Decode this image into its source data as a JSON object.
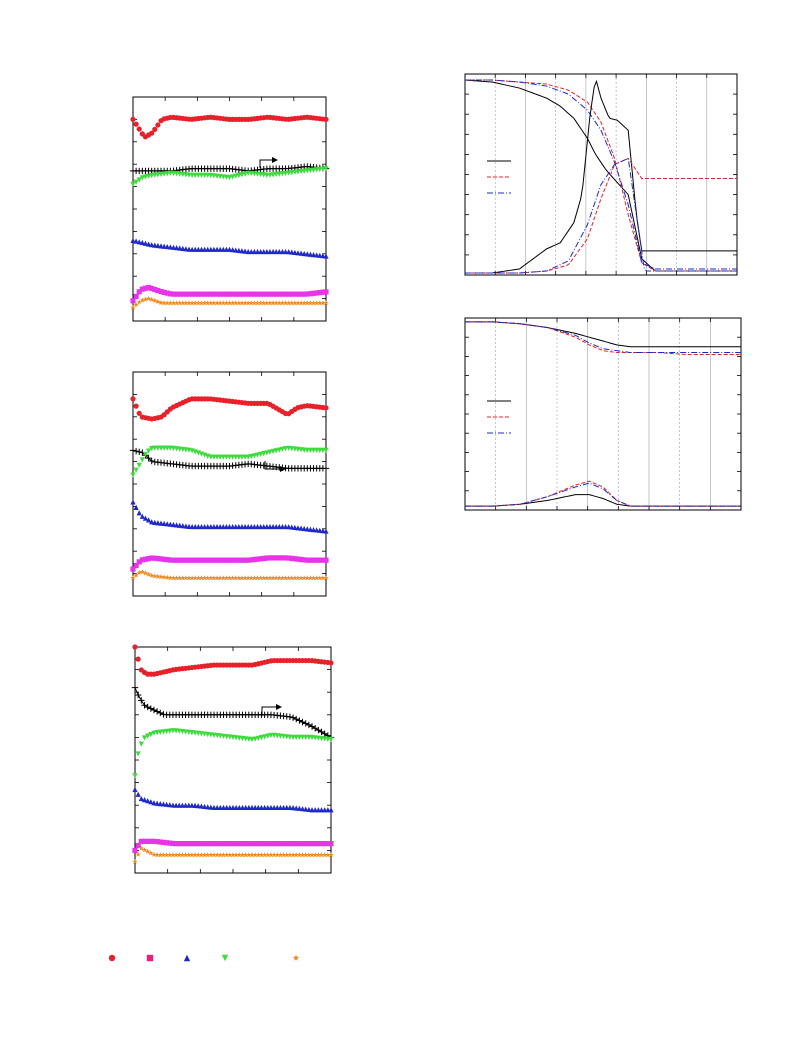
{
  "chart_data": [
    {
      "type": "scatter",
      "xlim": [
        0,
        1
      ],
      "ylim": [
        0,
        1
      ],
      "grid": false,
      "series": [
        {
          "color": "#e8202a",
          "marker": "circle",
          "x": [
            0,
            0.06,
            0.1,
            0.15,
            0.2,
            0.3,
            0.4,
            0.5,
            0.6,
            0.7,
            0.8,
            0.9,
            1.0
          ],
          "y": [
            0.9,
            0.82,
            0.84,
            0.9,
            0.91,
            0.9,
            0.91,
            0.9,
            0.9,
            0.91,
            0.9,
            0.91,
            0.9
          ]
        },
        {
          "color": "#000000",
          "marker": "plus",
          "x": [
            0,
            0.1,
            0.2,
            0.3,
            0.4,
            0.5,
            0.6,
            0.7,
            0.8,
            0.9,
            1.0
          ],
          "y": [
            0.67,
            0.67,
            0.67,
            0.68,
            0.68,
            0.68,
            0.67,
            0.68,
            0.68,
            0.69,
            0.68
          ]
        },
        {
          "color": "#3ddc3d",
          "marker": "triangle-down",
          "x": [
            0,
            0.05,
            0.1,
            0.2,
            0.3,
            0.4,
            0.5,
            0.6,
            0.7,
            0.8,
            0.9,
            1.0
          ],
          "y": [
            0.61,
            0.64,
            0.65,
            0.66,
            0.65,
            0.65,
            0.64,
            0.66,
            0.65,
            0.66,
            0.67,
            0.68
          ]
        },
        {
          "color": "#1f28c8",
          "marker": "triangle-up",
          "x": [
            0,
            0.1,
            0.2,
            0.3,
            0.4,
            0.5,
            0.6,
            0.7,
            0.8,
            0.9,
            1.0
          ],
          "y": [
            0.36,
            0.34,
            0.33,
            0.32,
            0.32,
            0.32,
            0.31,
            0.31,
            0.31,
            0.3,
            0.29
          ]
        },
        {
          "color": "#e834e8",
          "marker": "square",
          "x": [
            0,
            0.04,
            0.08,
            0.15,
            0.2,
            0.3,
            0.4,
            0.5,
            0.6,
            0.7,
            0.8,
            0.9,
            1.0
          ],
          "y": [
            0.09,
            0.14,
            0.15,
            0.13,
            0.12,
            0.12,
            0.12,
            0.12,
            0.12,
            0.12,
            0.12,
            0.12,
            0.13
          ]
        },
        {
          "color": "#f08a20",
          "marker": "star",
          "x": [
            0,
            0.04,
            0.08,
            0.15,
            0.2,
            0.3,
            0.4,
            0.5,
            0.6,
            0.7,
            0.8,
            0.9,
            1.0
          ],
          "y": [
            0.06,
            0.09,
            0.1,
            0.08,
            0.08,
            0.08,
            0.08,
            0.08,
            0.08,
            0.08,
            0.08,
            0.08,
            0.08
          ]
        }
      ]
    },
    {
      "type": "scatter",
      "xlim": [
        0,
        1
      ],
      "ylim": [
        0,
        1
      ],
      "grid": false,
      "series": [
        {
          "color": "#e8202a",
          "marker": "circle",
          "x": [
            0,
            0.04,
            0.1,
            0.15,
            0.2,
            0.3,
            0.4,
            0.5,
            0.6,
            0.7,
            0.8,
            0.85,
            0.9,
            1.0
          ],
          "y": [
            0.88,
            0.8,
            0.79,
            0.8,
            0.84,
            0.88,
            0.88,
            0.87,
            0.86,
            0.86,
            0.81,
            0.84,
            0.85,
            0.84
          ]
        },
        {
          "color": "#000000",
          "marker": "plus",
          "x": [
            0,
            0.05,
            0.1,
            0.2,
            0.3,
            0.4,
            0.5,
            0.6,
            0.7,
            0.8,
            0.9,
            1.0
          ],
          "y": [
            0.65,
            0.64,
            0.6,
            0.59,
            0.58,
            0.58,
            0.58,
            0.59,
            0.58,
            0.57,
            0.57,
            0.57
          ]
        },
        {
          "color": "#3ddc3d",
          "marker": "triangle-down",
          "x": [
            0,
            0.03,
            0.07,
            0.1,
            0.2,
            0.3,
            0.4,
            0.5,
            0.6,
            0.7,
            0.8,
            0.9,
            1.0
          ],
          "y": [
            0.54,
            0.58,
            0.64,
            0.66,
            0.66,
            0.65,
            0.62,
            0.62,
            0.62,
            0.64,
            0.66,
            0.65,
            0.65
          ]
        },
        {
          "color": "#1f28c8",
          "marker": "triangle-up",
          "x": [
            0,
            0.04,
            0.1,
            0.2,
            0.3,
            0.4,
            0.5,
            0.6,
            0.7,
            0.8,
            0.9,
            1.0
          ],
          "y": [
            0.42,
            0.36,
            0.33,
            0.32,
            0.31,
            0.31,
            0.31,
            0.31,
            0.31,
            0.31,
            0.3,
            0.29
          ]
        },
        {
          "color": "#e834e8",
          "marker": "square",
          "x": [
            0,
            0.04,
            0.1,
            0.2,
            0.3,
            0.4,
            0.5,
            0.6,
            0.7,
            0.8,
            0.9,
            1.0
          ],
          "y": [
            0.12,
            0.16,
            0.17,
            0.16,
            0.16,
            0.16,
            0.16,
            0.16,
            0.17,
            0.17,
            0.16,
            0.16
          ]
        },
        {
          "color": "#f08a20",
          "marker": "star",
          "x": [
            0,
            0.04,
            0.1,
            0.2,
            0.3,
            0.4,
            0.5,
            0.6,
            0.7,
            0.8,
            0.9,
            1.0
          ],
          "y": [
            0.08,
            0.11,
            0.09,
            0.08,
            0.08,
            0.08,
            0.08,
            0.08,
            0.08,
            0.08,
            0.08,
            0.08
          ]
        }
      ]
    },
    {
      "type": "scatter",
      "xlim": [
        0,
        1
      ],
      "ylim": [
        0,
        1
      ],
      "grid": false,
      "series": [
        {
          "color": "#e8202a",
          "marker": "circle",
          "x": [
            0,
            0.03,
            0.06,
            0.1,
            0.2,
            0.3,
            0.4,
            0.5,
            0.6,
            0.7,
            0.8,
            0.9,
            1.0
          ],
          "y": [
            1.0,
            0.9,
            0.88,
            0.88,
            0.9,
            0.91,
            0.92,
            0.92,
            0.92,
            0.94,
            0.94,
            0.94,
            0.93
          ]
        },
        {
          "color": "#000000",
          "marker": "plus",
          "x": [
            0,
            0.02,
            0.05,
            0.1,
            0.15,
            0.2,
            0.3,
            0.4,
            0.5,
            0.6,
            0.7,
            0.8,
            0.9,
            1.0
          ],
          "y": [
            0.82,
            0.78,
            0.74,
            0.72,
            0.7,
            0.7,
            0.7,
            0.7,
            0.7,
            0.7,
            0.7,
            0.69,
            0.65,
            0.6
          ]
        },
        {
          "color": "#3ddc3d",
          "marker": "triangle-down",
          "x": [
            0,
            0.02,
            0.05,
            0.1,
            0.2,
            0.3,
            0.4,
            0.5,
            0.6,
            0.7,
            0.8,
            0.9,
            1.0
          ],
          "y": [
            0.43,
            0.55,
            0.6,
            0.62,
            0.63,
            0.62,
            0.61,
            0.6,
            0.59,
            0.61,
            0.6,
            0.6,
            0.59
          ]
        },
        {
          "color": "#1f28c8",
          "marker": "triangle-up",
          "x": [
            0,
            0.03,
            0.1,
            0.2,
            0.3,
            0.4,
            0.5,
            0.6,
            0.7,
            0.8,
            0.9,
            1.0
          ],
          "y": [
            0.37,
            0.33,
            0.31,
            0.3,
            0.3,
            0.29,
            0.29,
            0.29,
            0.29,
            0.29,
            0.28,
            0.28
          ]
        },
        {
          "color": "#e834e8",
          "marker": "square",
          "x": [
            0,
            0.03,
            0.1,
            0.2,
            0.3,
            0.4,
            0.5,
            0.6,
            0.7,
            0.8,
            0.9,
            1.0
          ],
          "y": [
            0.1,
            0.14,
            0.14,
            0.13,
            0.13,
            0.13,
            0.13,
            0.13,
            0.13,
            0.13,
            0.13,
            0.13
          ]
        },
        {
          "color": "#f08a20",
          "marker": "star",
          "x": [
            0,
            0.03,
            0.1,
            0.2,
            0.3,
            0.4,
            0.5,
            0.6,
            0.7,
            0.8,
            0.9,
            1.0
          ],
          "y": [
            0.05,
            0.11,
            0.08,
            0.08,
            0.08,
            0.08,
            0.08,
            0.08,
            0.08,
            0.08,
            0.08,
            0.08
          ]
        }
      ]
    },
    {
      "type": "line",
      "xlim": [
        0,
        1
      ],
      "ylim": [
        0,
        1
      ],
      "grid": true,
      "series": [
        {
          "color": "#000000",
          "dash": "solid",
          "x": [
            0,
            0.1,
            0.2,
            0.3,
            0.35,
            0.4,
            0.45,
            0.48,
            0.52,
            0.56,
            0.6,
            0.65,
            0.7,
            0.8,
            1.0
          ],
          "y": [
            0.97,
            0.96,
            0.93,
            0.88,
            0.84,
            0.78,
            0.68,
            0.6,
            0.52,
            0.46,
            0.4,
            0.08,
            0.02,
            0.02,
            0.02
          ]
        },
        {
          "color": "#e8202a",
          "dash": "dash",
          "x": [
            0,
            0.1,
            0.2,
            0.3,
            0.38,
            0.45,
            0.5,
            0.55,
            0.6,
            0.65,
            0.7,
            0.8,
            1.0
          ],
          "y": [
            0.97,
            0.97,
            0.96,
            0.95,
            0.92,
            0.86,
            0.76,
            0.58,
            0.3,
            0.06,
            0.02,
            0.02,
            0.02
          ]
        },
        {
          "color": "#1f28c8",
          "dash": "dashdot",
          "x": [
            0,
            0.1,
            0.2,
            0.3,
            0.38,
            0.45,
            0.5,
            0.55,
            0.6,
            0.65,
            0.7,
            0.8,
            1.0
          ],
          "y": [
            0.97,
            0.97,
            0.96,
            0.94,
            0.9,
            0.82,
            0.72,
            0.56,
            0.35,
            0.06,
            0.03,
            0.03,
            0.03
          ]
        },
        {
          "color": "#000000",
          "dash": "solid",
          "x": [
            0,
            0.1,
            0.2,
            0.25,
            0.3,
            0.35,
            0.4,
            0.43,
            0.46,
            0.48,
            0.5,
            0.53,
            0.56,
            0.6,
            0.63,
            0.65,
            0.7,
            0.8,
            1.0
          ],
          "y": [
            0.01,
            0.01,
            0.03,
            0.08,
            0.13,
            0.16,
            0.26,
            0.4,
            0.8,
            0.98,
            0.88,
            0.78,
            0.77,
            0.72,
            0.3,
            0.12,
            0.12,
            0.12,
            0.12
          ]
        },
        {
          "color": "#e8202a",
          "dash": "dash",
          "x": [
            0,
            0.1,
            0.2,
            0.3,
            0.38,
            0.45,
            0.5,
            0.55,
            0.6,
            0.65,
            0.7,
            0.8,
            1.0
          ],
          "y": [
            0.01,
            0.01,
            0.01,
            0.02,
            0.05,
            0.18,
            0.38,
            0.55,
            0.58,
            0.48,
            0.48,
            0.48,
            0.48
          ]
        },
        {
          "color": "#1f28c8",
          "dash": "dashdot",
          "x": [
            0,
            0.1,
            0.2,
            0.3,
            0.38,
            0.45,
            0.5,
            0.55,
            0.6,
            0.63,
            0.66,
            0.7,
            0.8,
            1.0
          ],
          "y": [
            0.01,
            0.01,
            0.01,
            0.02,
            0.07,
            0.25,
            0.45,
            0.55,
            0.58,
            0.3,
            0.02,
            0.02,
            0.02,
            0.02
          ]
        }
      ]
    },
    {
      "type": "line",
      "xlim": [
        0,
        1
      ],
      "ylim": [
        0,
        1
      ],
      "grid": true,
      "series": [
        {
          "color": "#000000",
          "dash": "solid",
          "x": [
            0,
            0.1,
            0.2,
            0.3,
            0.4,
            0.5,
            0.55,
            0.6,
            0.7,
            0.8,
            1.0
          ],
          "y": [
            0.98,
            0.98,
            0.97,
            0.95,
            0.92,
            0.88,
            0.86,
            0.85,
            0.85,
            0.85,
            0.85
          ]
        },
        {
          "color": "#e8202a",
          "dash": "dash",
          "x": [
            0,
            0.1,
            0.2,
            0.3,
            0.4,
            0.45,
            0.5,
            0.55,
            0.6,
            0.7,
            0.8,
            1.0
          ],
          "y": [
            0.98,
            0.98,
            0.97,
            0.95,
            0.9,
            0.86,
            0.83,
            0.82,
            0.82,
            0.82,
            0.81,
            0.81
          ]
        },
        {
          "color": "#1f28c8",
          "dash": "dashdot",
          "x": [
            0,
            0.1,
            0.2,
            0.3,
            0.4,
            0.45,
            0.5,
            0.55,
            0.6,
            0.7,
            0.8,
            1.0
          ],
          "y": [
            0.98,
            0.98,
            0.97,
            0.95,
            0.91,
            0.87,
            0.84,
            0.83,
            0.82,
            0.82,
            0.82,
            0.82
          ]
        },
        {
          "color": "#000000",
          "dash": "solid",
          "x": [
            0,
            0.1,
            0.2,
            0.3,
            0.4,
            0.45,
            0.5,
            0.55,
            0.6,
            0.7,
            0.8,
            1.0
          ],
          "y": [
            0.02,
            0.02,
            0.03,
            0.05,
            0.08,
            0.08,
            0.06,
            0.03,
            0.02,
            0.02,
            0.02,
            0.02
          ]
        },
        {
          "color": "#e8202a",
          "dash": "dash",
          "x": [
            0,
            0.1,
            0.2,
            0.3,
            0.4,
            0.45,
            0.5,
            0.55,
            0.6,
            0.7,
            0.8,
            1.0
          ],
          "y": [
            0.02,
            0.02,
            0.03,
            0.07,
            0.13,
            0.15,
            0.12,
            0.05,
            0.02,
            0.02,
            0.02,
            0.02
          ]
        },
        {
          "color": "#1f28c8",
          "dash": "dashdot",
          "x": [
            0,
            0.1,
            0.2,
            0.3,
            0.4,
            0.45,
            0.5,
            0.55,
            0.6,
            0.7,
            0.8,
            1.0
          ],
          "y": [
            0.02,
            0.02,
            0.03,
            0.07,
            0.12,
            0.14,
            0.11,
            0.05,
            0.02,
            0.02,
            0.02,
            0.02
          ]
        }
      ]
    }
  ],
  "bottom_legend": [
    {
      "marker": "circle",
      "color": "#e8202a"
    },
    {
      "marker": "square",
      "color": "#e8207a"
    },
    {
      "marker": "triangle-up",
      "color": "#1f28c8"
    },
    {
      "marker": "triangle-down",
      "color": "#3ddc3d"
    },
    {
      "marker": "star",
      "color": "#f08a20"
    }
  ]
}
